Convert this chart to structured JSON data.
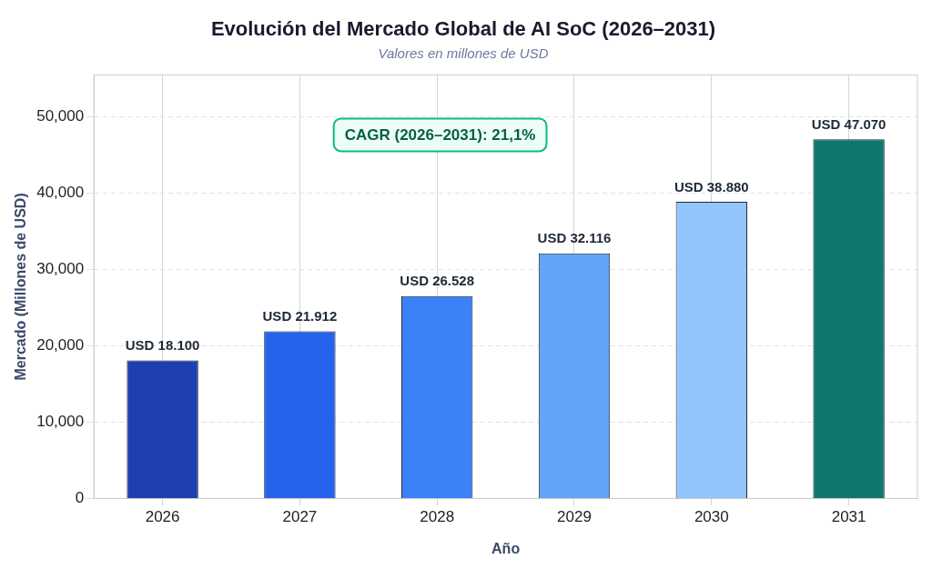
{
  "chart_data": {
    "type": "bar",
    "title": "Evolución del Mercado Global de AI SoC (2026–2031)",
    "subtitle": "Valores en millones de USD",
    "xlabel": "Año",
    "ylabel": "Mercado (Millones de USD)",
    "categories": [
      "2026",
      "2027",
      "2028",
      "2029",
      "2030",
      "2031"
    ],
    "values": [
      18100,
      21912,
      26528,
      32116,
      38880,
      47070
    ],
    "colors": [
      "#1e40af",
      "#2563eb",
      "#3b82f6",
      "#60a5fa",
      "#93c5fd",
      "#0f766e"
    ],
    "value_labels": [
      "USD 18.100",
      "USD 21.912",
      "USD 26.528",
      "USD 32.116",
      "USD 38.880",
      "USD 47.070"
    ],
    "ylim": [
      0,
      55500
    ],
    "yticks": [
      {
        "value": 0,
        "label": "0"
      },
      {
        "value": 10000,
        "label": "10,000"
      },
      {
        "value": 20000,
        "label": "20,000"
      },
      {
        "value": 30000,
        "label": "30,000"
      },
      {
        "value": 40000,
        "label": "40,000"
      },
      {
        "value": 50000,
        "label": "50,000"
      }
    ],
    "grid": true,
    "legend": false,
    "annotations": [
      "CAGR (2026–2031): 21,1%"
    ]
  }
}
